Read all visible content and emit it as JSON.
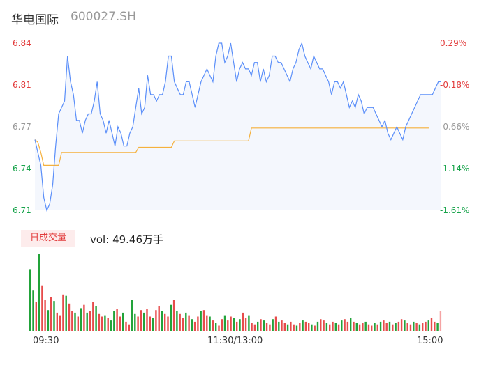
{
  "header": {
    "name": "华电国际",
    "code": "600027.SH"
  },
  "colors": {
    "price": "#5b8ff9",
    "avg": "#f5b13d",
    "up": "#e23c3c",
    "down": "#16a34a",
    "neutral": "#999999",
    "vol_up": "#e74c4c",
    "vol_down": "#22a33a"
  },
  "volume_header": {
    "badge": "日成交量",
    "label": "vol:",
    "value": "49.46万手"
  },
  "chart_data": [
    {
      "type": "line",
      "title": "",
      "y_left_ticks": [
        "6.84",
        "6.81",
        "6.77",
        "6.74",
        "6.71"
      ],
      "y_right_ticks": [
        "0.29%",
        "-0.18%",
        "-0.66%",
        "-1.14%",
        "-1.61%"
      ],
      "ylim": [
        6.71,
        6.84
      ],
      "x_ticks": [
        "09:30",
        "11:30/13:00",
        "15:00"
      ],
      "series": [
        {
          "role": "price",
          "values": [
            6.765,
            6.755,
            6.745,
            6.72,
            6.71,
            6.715,
            6.73,
            6.76,
            6.785,
            6.79,
            6.795,
            6.83,
            6.81,
            6.8,
            6.78,
            6.78,
            6.77,
            6.78,
            6.785,
            6.785,
            6.795,
            6.81,
            6.785,
            6.78,
            6.77,
            6.78,
            6.77,
            6.76,
            6.775,
            6.77,
            6.76,
            6.76,
            6.77,
            6.775,
            6.79,
            6.805,
            6.785,
            6.79,
            6.815,
            6.8,
            6.8,
            6.795,
            6.8,
            6.8,
            6.81,
            6.83,
            6.83,
            6.81,
            6.805,
            6.8,
            6.8,
            6.81,
            6.81,
            6.8,
            6.79,
            6.8,
            6.81,
            6.815,
            6.82,
            6.815,
            6.81,
            6.83,
            6.84,
            6.84,
            6.825,
            6.83,
            6.84,
            6.825,
            6.81,
            6.82,
            6.825,
            6.82,
            6.82,
            6.815,
            6.825,
            6.825,
            6.81,
            6.82,
            6.81,
            6.815,
            6.83,
            6.83,
            6.825,
            6.825,
            6.82,
            6.815,
            6.81,
            6.82,
            6.825,
            6.835,
            6.84,
            6.83,
            6.825,
            6.82,
            6.83,
            6.825,
            6.82,
            6.82,
            6.815,
            6.81,
            6.8,
            6.81,
            6.81,
            6.805,
            6.81,
            6.8,
            6.79,
            6.795,
            6.79,
            6.8,
            6.795,
            6.785,
            6.79,
            6.79,
            6.79,
            6.785,
            6.78,
            6.775,
            6.78,
            6.77,
            6.765,
            6.77,
            6.775,
            6.77,
            6.765,
            6.775,
            6.78,
            6.785,
            6.79,
            6.795,
            6.8,
            6.8,
            6.8,
            6.8,
            6.8,
            6.805,
            6.81,
            6.81
          ]
        },
        {
          "role": "avg",
          "values": [
            6.765,
            6.763,
            6.755,
            6.745,
            6.745,
            6.745,
            6.745,
            6.745,
            6.745,
            6.755,
            6.755,
            6.755,
            6.755,
            6.755,
            6.755,
            6.755,
            6.755,
            6.755,
            6.755,
            6.755,
            6.755,
            6.755,
            6.755,
            6.755,
            6.755,
            6.755,
            6.755,
            6.755,
            6.755,
            6.755,
            6.755,
            6.755,
            6.755,
            6.755,
            6.755,
            6.759,
            6.759,
            6.759,
            6.759,
            6.759,
            6.759,
            6.759,
            6.759,
            6.759,
            6.759,
            6.759,
            6.759,
            6.764,
            6.764,
            6.764,
            6.764,
            6.764,
            6.764,
            6.764,
            6.764,
            6.764,
            6.764,
            6.764,
            6.764,
            6.764,
            6.764,
            6.764,
            6.764,
            6.764,
            6.764,
            6.764,
            6.764,
            6.764,
            6.764,
            6.764,
            6.764,
            6.764,
            6.764,
            6.774,
            6.774,
            6.774,
            6.774,
            6.774,
            6.774,
            6.774,
            6.774,
            6.774,
            6.774,
            6.774,
            6.774,
            6.774,
            6.774,
            6.774,
            6.774,
            6.774,
            6.774,
            6.774,
            6.774,
            6.774,
            6.774,
            6.774,
            6.774,
            6.774,
            6.774,
            6.774,
            6.774,
            6.774,
            6.774,
            6.774,
            6.774,
            6.774,
            6.774,
            6.774,
            6.774,
            6.774,
            6.774,
            6.774,
            6.774,
            6.774,
            6.774,
            6.774,
            6.774,
            6.774,
            6.774,
            6.774,
            6.774,
            6.774,
            6.774,
            6.774,
            6.774,
            6.774,
            6.774,
            6.774,
            6.774,
            6.774,
            6.774,
            6.774,
            6.774,
            6.774
          ]
        }
      ]
    },
    {
      "type": "bar",
      "title": "",
      "values": [
        95,
        62,
        45,
        118,
        70,
        48,
        32,
        52,
        46,
        28,
        24,
        56,
        54,
        42,
        30,
        28,
        22,
        35,
        40,
        28,
        30,
        45,
        38,
        26,
        22,
        24,
        20,
        16,
        30,
        34,
        22,
        28,
        14,
        10,
        48,
        26,
        22,
        32,
        28,
        34,
        22,
        20,
        32,
        38,
        30,
        26,
        22,
        40,
        48,
        30,
        26,
        20,
        28,
        24,
        18,
        14,
        22,
        30,
        32,
        24,
        22,
        16,
        12,
        8,
        18,
        24,
        16,
        22,
        20,
        14,
        18,
        28,
        20,
        24,
        12,
        10,
        14,
        18,
        16,
        12,
        10,
        18,
        22,
        14,
        16,
        12,
        10,
        14,
        10,
        8,
        12,
        16,
        14,
        12,
        10,
        8,
        14,
        18,
        16,
        12,
        10,
        14,
        12,
        10,
        16,
        18,
        14,
        20,
        14,
        12,
        10,
        12,
        14,
        10,
        8,
        12,
        10,
        14,
        16,
        12,
        14,
        10,
        12,
        14,
        18,
        16,
        12,
        10,
        14,
        12,
        10,
        12,
        14,
        16,
        20,
        14,
        12,
        30
      ],
      "directions": [
        "d",
        "d",
        "u",
        "d",
        "u",
        "u",
        "d",
        "u",
        "d",
        "u",
        "u",
        "u",
        "d",
        "u",
        "u",
        "d",
        "u",
        "d",
        "u",
        "d",
        "u",
        "u",
        "d",
        "u",
        "u",
        "d",
        "u",
        "d",
        "d",
        "u",
        "u",
        "d",
        "u",
        "u",
        "d",
        "d",
        "u",
        "u",
        "d",
        "u",
        "u",
        "d",
        "u",
        "u",
        "d",
        "u",
        "u",
        "d",
        "u",
        "d",
        "u",
        "u",
        "d",
        "u",
        "d",
        "u",
        "u",
        "d",
        "u",
        "u",
        "d",
        "u",
        "d",
        "u",
        "u",
        "d",
        "u",
        "u",
        "d",
        "u",
        "d",
        "u",
        "u",
        "d",
        "u",
        "u",
        "d",
        "u",
        "d",
        "u",
        "u",
        "d",
        "u",
        "d",
        "u",
        "u",
        "d",
        "u",
        "u",
        "d",
        "u",
        "d",
        "u",
        "u",
        "d",
        "u",
        "d",
        "u",
        "u",
        "d",
        "u",
        "u",
        "d",
        "u",
        "d",
        "u",
        "u",
        "d",
        "u",
        "d",
        "u",
        "u",
        "d",
        "u",
        "u",
        "d",
        "u",
        "d",
        "u",
        "u",
        "d",
        "u",
        "d",
        "u",
        "u",
        "d",
        "u",
        "u",
        "d",
        "u",
        "d",
        "u",
        "u",
        "d",
        "u",
        "u",
        "d",
        "u"
      ]
    }
  ]
}
